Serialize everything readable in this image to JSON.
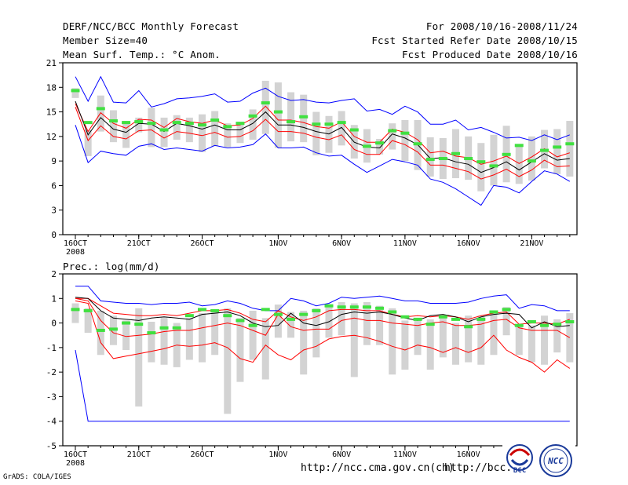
{
  "header": {
    "title": "DERF/NCC/BCC Monthly Forecast",
    "member_size": "Member Size=40",
    "variable": "Mean Surf. Temp.: °C Anom.",
    "period": "For 2008/10/16-2008/11/24",
    "start_date": "Fcst Started Refer Date 2008/10/15",
    "produced_date": "Fcst Produced Date 2008/10/16"
  },
  "precip_title": "Prec.: log(mm/d)",
  "footer": {
    "url1": "http://ncc.cma.gov.cn(ch)",
    "url2": "http://bcc.",
    "grads": "GrADS: COLA/IGES"
  },
  "logos": {
    "bcc_label": "BCC",
    "ncc_label": "NCC"
  },
  "colors": {
    "box": "#d3d3d3",
    "median": "#40e040",
    "mean": "#000000",
    "spread": "#ff0000",
    "extreme": "#0000ff"
  },
  "chart_data": [
    {
      "type": "ensemble-boxplot-line",
      "title": "Mean Surf. Temp.: °C Anom.",
      "x_tick_labels": [
        "16OCT",
        "21OCT",
        "26OCT",
        "1NOV",
        "6NOV",
        "11NOV",
        "16NOV",
        "21NOV"
      ],
      "x_tick_day_index": [
        0,
        5,
        10,
        16,
        21,
        26,
        31,
        36
      ],
      "x_sublabel": "2008",
      "ylim": [
        0,
        21
      ],
      "yticks": [
        0,
        3,
        6,
        9,
        12,
        15,
        18,
        21
      ],
      "days": 40,
      "series": [
        {
          "name": "max",
          "values": [
            19.3,
            16.3,
            19.3,
            16.2,
            16.1,
            17.6,
            15.6,
            16,
            16.6,
            16.7,
            16.9,
            17.2,
            16.2,
            16.3,
            17.3,
            17.9,
            16.9,
            16.4,
            16.5,
            16.2,
            16.1,
            16.4,
            16.6,
            15.1,
            15.3,
            14.7,
            15.7,
            15,
            13.5,
            13.5,
            14,
            12.8,
            13.1,
            12.5,
            11.8,
            11.9,
            11.5,
            12.2,
            11.6,
            12.2
          ]
        },
        {
          "name": "mean_plus_sd",
          "values": [
            16,
            12.6,
            14.9,
            13.6,
            13,
            14.1,
            14,
            13.1,
            14.2,
            13.8,
            13.6,
            14,
            13.3,
            13.4,
            14.2,
            15.7,
            14,
            14,
            13.7,
            13.2,
            13,
            13.8,
            12,
            11.3,
            11.3,
            12.9,
            12.5,
            11.6,
            10,
            10.2,
            9.6,
            9.4,
            8.6,
            9,
            9.6,
            8.7,
            9.5,
            10.5,
            9.5,
            10
          ]
        },
        {
          "name": "mean",
          "values": [
            16.3,
            12.2,
            14.3,
            12.9,
            12.5,
            13.6,
            13.5,
            12.6,
            13.6,
            13.3,
            12.9,
            13.4,
            12.8,
            12.8,
            13.6,
            15,
            13.4,
            13.4,
            13.1,
            12.6,
            12.3,
            13.1,
            11.3,
            10.7,
            10.6,
            12.3,
            11.8,
            11,
            9.3,
            9.4,
            8.9,
            8.6,
            7.6,
            8.2,
            8.9,
            7.9,
            8.9,
            9.9,
            9.1,
            9.3
          ]
        },
        {
          "name": "mean_minus_sd",
          "values": [
            15.6,
            11.5,
            13.3,
            12,
            11.7,
            12.7,
            12.8,
            11.8,
            12.6,
            12.4,
            12.1,
            12.5,
            11.9,
            12,
            12.7,
            14.1,
            12.6,
            12.6,
            12.4,
            11.9,
            11.6,
            12.2,
            10.4,
            9.8,
            9.8,
            11.5,
            11,
            10.1,
            8.5,
            8.5,
            8.1,
            7.7,
            6.8,
            7.3,
            8,
            7.1,
            7.9,
            9.1,
            8.3,
            8.4
          ]
        },
        {
          "name": "min",
          "values": [
            13.4,
            8.8,
            10.2,
            9.9,
            9.7,
            10.8,
            11.1,
            10.4,
            10.6,
            10.4,
            10.2,
            10.9,
            10.6,
            10.7,
            11,
            12.3,
            10.6,
            10.6,
            10.7,
            10,
            9.6,
            9.7,
            8.6,
            7.6,
            8.4,
            9.2,
            8.9,
            8.5,
            6.8,
            6.4,
            5.6,
            4.6,
            3.6,
            6,
            5.8,
            5.1,
            6.5,
            7.8,
            7.4,
            6.5
          ]
        },
        {
          "name": "box_upper",
          "values": [
            17.9,
            12.8,
            17,
            15.2,
            13.9,
            14.3,
            15.5,
            14.3,
            14.6,
            14.3,
            14.7,
            15.1,
            13.6,
            13.8,
            15.3,
            18.8,
            18.6,
            17.4,
            17.1,
            15,
            14.5,
            15.1,
            13.4,
            12.9,
            11.7,
            13.6,
            14,
            14,
            11.9,
            11.8,
            12.9,
            12,
            11.2,
            12.2,
            13.3,
            10.8,
            12,
            12.8,
            12.9,
            13.9
          ]
        },
        {
          "name": "box_lower",
          "values": [
            16.7,
            9.6,
            12.6,
            11.3,
            10.6,
            12.5,
            10.7,
            10.7,
            11.6,
            11.3,
            10.1,
            10.8,
            10.7,
            11.2,
            11.6,
            12.3,
            10.6,
            11.4,
            11.3,
            9.7,
            10,
            10.9,
            9.3,
            8.8,
            9.8,
            10.4,
            9,
            7.9,
            7.1,
            6.8,
            6.9,
            6.7,
            5.3,
            6,
            6.4,
            6.2,
            6.6,
            8.1,
            7.4,
            7.1
          ]
        },
        {
          "name": "median",
          "values": [
            17.6,
            13.7,
            15.4,
            13.9,
            13.7,
            13.8,
            13.6,
            12.8,
            13.7,
            13.6,
            13.4,
            14,
            13.2,
            13.6,
            14.5,
            16.1,
            15,
            13.8,
            14.4,
            13.5,
            13.5,
            13.7,
            12.8,
            10.8,
            11.2,
            12.7,
            12.4,
            11.1,
            9.2,
            9.3,
            9.9,
            9.3,
            8.9,
            8.4,
            9.8,
            10.9,
            9,
            10.3,
            10.7,
            11.1
          ]
        }
      ]
    },
    {
      "type": "ensemble-boxplot-line",
      "title": "Prec.: log(mm/d)",
      "x_tick_labels": [
        "16OCT",
        "21OCT",
        "26OCT",
        "1NOV",
        "6NOV",
        "11NOV",
        "16NOV"
      ],
      "x_tick_day_index": [
        0,
        5,
        10,
        16,
        21,
        26,
        31
      ],
      "x_sublabel": "2008",
      "ylim": [
        -5,
        2
      ],
      "yticks": [
        -5,
        -4,
        -3,
        -2,
        -1,
        0,
        1,
        2
      ],
      "days": 40,
      "series": [
        {
          "name": "max",
          "values": [
            1.5,
            1.5,
            0.9,
            0.85,
            0.8,
            0.8,
            0.75,
            0.8,
            0.8,
            0.85,
            0.7,
            0.75,
            0.9,
            0.8,
            0.6,
            0.5,
            0.5,
            1,
            0.9,
            0.7,
            0.8,
            1.05,
            1,
            1.05,
            1.1,
            1,
            0.9,
            0.9,
            0.8,
            0.8,
            0.8,
            0.85,
            1,
            1.1,
            1.15,
            0.6,
            0.75,
            0.7,
            0.5,
            0.5
          ]
        },
        {
          "name": "mean_plus_sd",
          "values": [
            1,
            1,
            0.7,
            0.4,
            0.35,
            0.3,
            0.3,
            0.35,
            0.3,
            0.4,
            0.5,
            0.5,
            0.55,
            0.4,
            0.15,
            0.05,
            0.5,
            0.25,
            0.1,
            0.25,
            0.5,
            0.55,
            0.55,
            0.5,
            0.5,
            0.35,
            0.25,
            0.3,
            0.25,
            0.3,
            0.25,
            0.15,
            0.3,
            0.4,
            0.45,
            -0.05,
            0,
            0,
            -0.05,
            0.15
          ]
        },
        {
          "name": "mean",
          "values": [
            1.05,
            1,
            0.5,
            0.2,
            0.15,
            0.1,
            0.2,
            0.25,
            0.2,
            0.15,
            0.35,
            0.4,
            0.45,
            0.3,
            0,
            -0.15,
            -0.1,
            0.4,
            0,
            -0.1,
            0.05,
            0.35,
            0.45,
            0.4,
            0.45,
            0.35,
            0.2,
            0.1,
            0.3,
            0.35,
            0.25,
            0.05,
            0.25,
            0.35,
            0.4,
            0.35,
            -0.2,
            0.05,
            -0.15,
            -0.1
          ]
        },
        {
          "name": "mean_minus_sd",
          "values": [
            1,
            0.9,
            0.1,
            -0.4,
            -0.55,
            -0.5,
            -0.45,
            -0.35,
            -0.3,
            -0.3,
            -0.2,
            -0.1,
            0,
            -0.1,
            -0.3,
            -0.5,
            0.35,
            -0.15,
            -0.3,
            -0.25,
            -0.25,
            0.1,
            0.2,
            0.1,
            0.1,
            0,
            -0.05,
            -0.1,
            0,
            0.05,
            -0.1,
            -0.1,
            -0.05,
            0.1,
            0.15,
            -0.2,
            -0.3,
            -0.3,
            -0.3,
            -0.6
          ]
        },
        {
          "name": "min",
          "values": [
            -1.1,
            -4,
            -4,
            -4,
            -4,
            -4,
            -4,
            -4,
            -4,
            -4,
            -4,
            -4,
            -4,
            -4,
            -4,
            -4,
            -4,
            -4,
            -4,
            -4,
            -4,
            -4,
            -4,
            -4,
            -4,
            -4,
            -4,
            -4,
            -4,
            -4,
            -4,
            -4,
            -4,
            -4,
            -4,
            -4,
            -4,
            -4,
            -4,
            -4
          ]
        },
        {
          "name": "mean_minus_2sd",
          "values": [
            0.9,
            0.8,
            -0.8,
            -1.45,
            -1.35,
            -1.25,
            -1.15,
            -1.05,
            -0.9,
            -0.95,
            -0.9,
            -0.8,
            -1,
            -1.45,
            -1.6,
            -0.9,
            -1.3,
            -1.5,
            -1.1,
            -0.95,
            -0.65,
            -0.55,
            -0.5,
            -0.6,
            -0.75,
            -0.95,
            -1.1,
            -0.9,
            -1,
            -1.2,
            -1,
            -1.2,
            -1,
            -0.5,
            -1.1,
            -1.4,
            -1.6,
            -2,
            -1.5,
            -1.85
          ]
        },
        {
          "name": "box_upper",
          "values": [
            0.8,
            0.6,
            0.5,
            0.3,
            0.1,
            0.6,
            0.05,
            0.25,
            0,
            0.2,
            0.4,
            0.5,
            0.6,
            0.2,
            0.5,
            0.2,
            0.75,
            0.45,
            0.5,
            0.6,
            0.7,
            0.85,
            0.8,
            0.85,
            0.7,
            0.6,
            0.1,
            0.2,
            0.15,
            0.2,
            0,
            0.3,
            0.3,
            0.4,
            0.65,
            -0.1,
            -0.1,
            0.3,
            0.15,
            0.4
          ]
        },
        {
          "name": "box_lower",
          "values": [
            0,
            -0.4,
            -1.3,
            -0.9,
            -1.1,
            -3.4,
            -1.6,
            -1.7,
            -1.8,
            -1.5,
            -1.6,
            -1.3,
            -3.7,
            -2.4,
            -1.5,
            -2.3,
            -0.6,
            -0.6,
            -2.1,
            -1.4,
            -0.6,
            -0.5,
            -2.2,
            -0.9,
            -0.9,
            -2.1,
            -1.9,
            -1.3,
            -1.9,
            -1.4,
            -1.7,
            -1.6,
            -1.7,
            -1.3,
            -0.5,
            -1.3,
            -1.6,
            -1.7,
            -1.2,
            -1.6
          ]
        },
        {
          "name": "median",
          "values": [
            0.55,
            0.5,
            -0.3,
            -0.25,
            0,
            -0.05,
            -0.4,
            -0.2,
            -0.2,
            0.3,
            0.55,
            0.5,
            0.3,
            0.1,
            -0.1,
            0.55,
            0.35,
            0.15,
            0.35,
            0.5,
            0.7,
            0.65,
            0.65,
            0.65,
            0.6,
            0.45,
            0.25,
            0.15,
            -0.05,
            0.25,
            0.15,
            -0.15,
            0.15,
            0.45,
            0.55,
            -0.1,
            0.05,
            -0.1,
            -0.05,
            0.05
          ]
        }
      ]
    }
  ]
}
